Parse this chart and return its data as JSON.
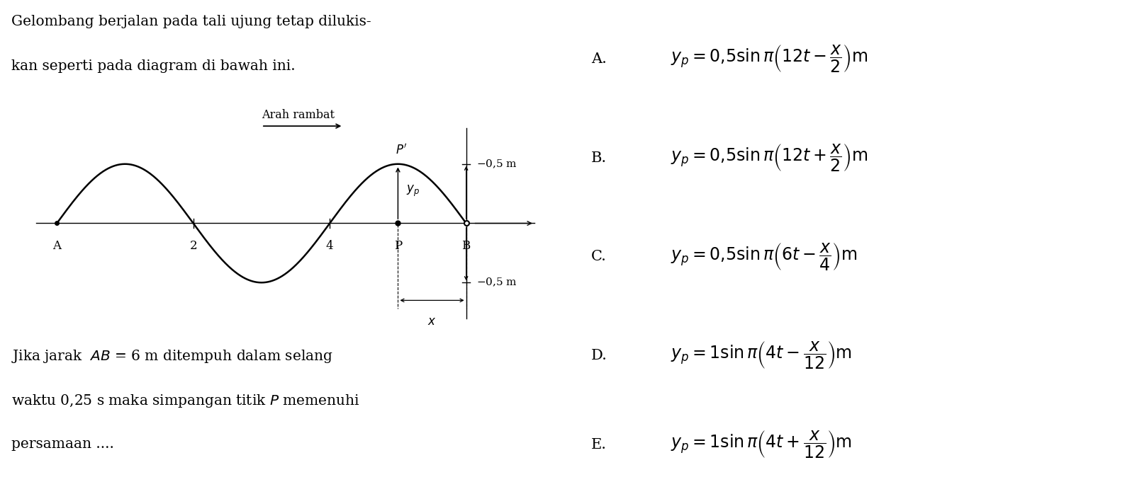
{
  "background_color": "#ffffff",
  "left_text_line1": "Gelombang berjalan pada tali ujung tetap dilukis-",
  "left_text_line2": "kan seperti pada diagram di bawah ini.",
  "arah_rambat_label": "Arah rambat",
  "wave_amplitude": 0.5,
  "wave_xstart": 0,
  "wave_xend": 6,
  "point_A_label": "A",
  "point_B_label": "B",
  "point_P_label": "P",
  "amplitude_text_pos": "0,5 m",
  "amplitude_text_neg": "0,5 m",
  "bottom_text_line1": "Jika jarak  $AB$ = 6 m ditempuh dalam selang",
  "bottom_text_line2": "waktu 0,25 s maka simpangan titik $P$ memenuhi",
  "bottom_text_line3": "persamaan ....",
  "font_size_text": 14.5,
  "font_size_options": 15,
  "font_size_wave_labels": 12
}
